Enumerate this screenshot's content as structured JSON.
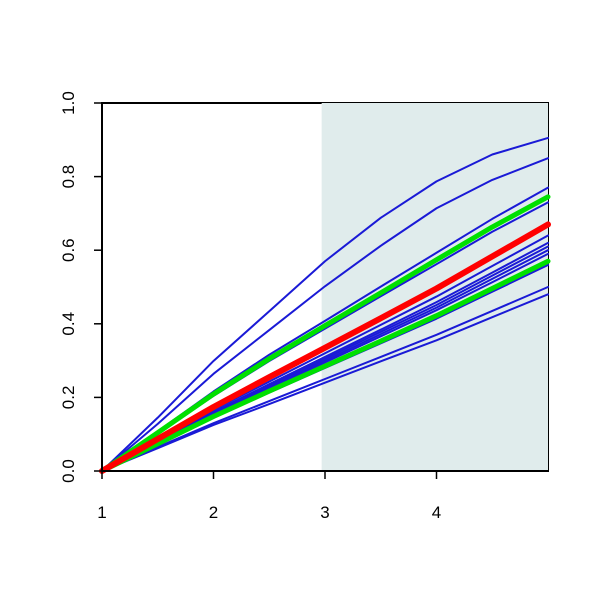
{
  "chart_data": {
    "type": "line",
    "x": [
      1,
      1.5,
      2,
      2.5,
      3,
      3.5,
      4,
      4.5,
      5
    ],
    "xlim": [
      1,
      5
    ],
    "ylim": [
      0,
      1
    ],
    "xticks": [
      1,
      2,
      3,
      4
    ],
    "yticks": [
      {
        "value": 0,
        "label": "0.0"
      },
      0.2,
      0.4,
      0.6,
      0.8,
      {
        "value": 1,
        "label": "1.0"
      }
    ],
    "shaded_x": [
      2.97,
      5
    ],
    "shade_color": "#e0ecec",
    "series": [
      {
        "color": "#1a1ad6",
        "width": 2,
        "values": [
          0,
          0.145,
          0.299,
          0.434,
          0.57,
          0.688,
          0.787,
          0.86,
          0.905
        ]
      },
      {
        "color": "#1a1ad6",
        "width": 2,
        "values": [
          0,
          0.128,
          0.264,
          0.383,
          0.502,
          0.612,
          0.714,
          0.791,
          0.85
        ]
      },
      {
        "color": "#1a1ad6",
        "width": 2,
        "values": [
          0,
          0.108,
          0.216,
          0.316,
          0.408,
          0.501,
          0.593,
          0.685,
          0.77
        ]
      },
      {
        "color": "#1a1ad6",
        "width": 2,
        "values": [
          0,
          0.102,
          0.204,
          0.299,
          0.387,
          0.475,
          0.562,
          0.65,
          0.73
        ]
      },
      {
        "color": "#1a1ad6",
        "width": 2,
        "values": [
          0,
          0.083,
          0.166,
          0.243,
          0.32,
          0.397,
          0.474,
          0.557,
          0.64
        ]
      },
      {
        "color": "#1a1ad6",
        "width": 2,
        "values": [
          0,
          0.081,
          0.161,
          0.236,
          0.31,
          0.384,
          0.459,
          0.539,
          0.62
        ]
      },
      {
        "color": "#1a1ad6",
        "width": 2,
        "values": [
          0,
          0.079,
          0.159,
          0.232,
          0.305,
          0.378,
          0.451,
          0.531,
          0.61
        ]
      },
      {
        "color": "#1a1ad6",
        "width": 2,
        "values": [
          0,
          0.078,
          0.156,
          0.228,
          0.3,
          0.372,
          0.444,
          0.522,
          0.6
        ]
      },
      {
        "color": "#1a1ad6",
        "width": 2,
        "values": [
          0,
          0.077,
          0.153,
          0.224,
          0.295,
          0.366,
          0.437,
          0.513,
          0.59
        ]
      },
      {
        "color": "#1a1ad6",
        "width": 2,
        "values": [
          0,
          0.073,
          0.146,
          0.213,
          0.28,
          0.347,
          0.414,
          0.487,
          0.56
        ]
      },
      {
        "color": "#1a1ad6",
        "width": 2,
        "values": [
          0,
          0.065,
          0.13,
          0.19,
          0.25,
          0.31,
          0.37,
          0.435,
          0.5
        ]
      },
      {
        "color": "#1a1ad6",
        "width": 2,
        "values": [
          0,
          0.062,
          0.125,
          0.182,
          0.24,
          0.298,
          0.355,
          0.418,
          0.48
        ]
      },
      {
        "color": "#00e000",
        "width": 5,
        "values": [
          0,
          0.104,
          0.209,
          0.305,
          0.395,
          0.484,
          0.574,
          0.663,
          0.745
        ]
      },
      {
        "color": "#00e000",
        "width": 5,
        "values": [
          0,
          0.074,
          0.148,
          0.217,
          0.285,
          0.353,
          0.422,
          0.496,
          0.57
        ]
      },
      {
        "color": "#ff0000",
        "width": 6,
        "values": [
          0,
          0.087,
          0.174,
          0.255,
          0.335,
          0.415,
          0.496,
          0.583,
          0.67
        ]
      }
    ]
  }
}
